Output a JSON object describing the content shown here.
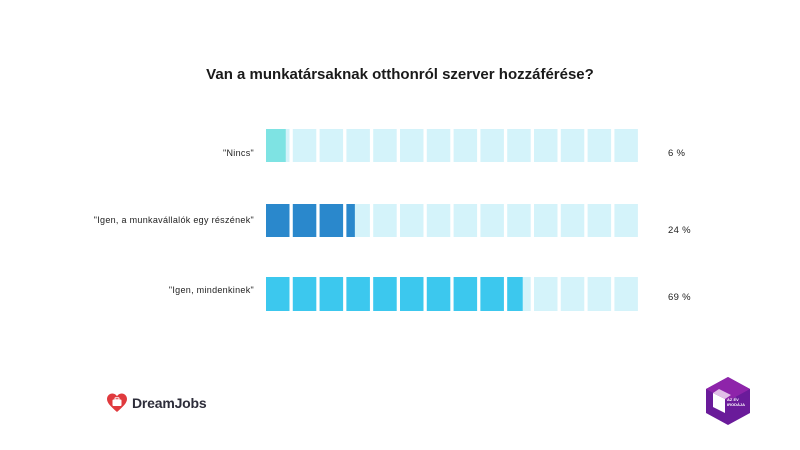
{
  "chart_data": {
    "type": "bar",
    "title": "Van a munkatársaknak otthonról szerver hozzáférése?",
    "categories": [
      "\"Nincs\"",
      "\"Igen, a munkavállalók egy részének\"",
      "\"Igen, mindenkinek\""
    ],
    "values": [
      6,
      24,
      69
    ],
    "value_labels": [
      "6 %",
      "24 %",
      "69 %"
    ],
    "unit": "%",
    "segments_per_bar": 14,
    "series_colors": [
      "#7ee3e3",
      "#2a88cc",
      "#3cc8ee"
    ],
    "empty_color": "#d4f3fa",
    "xlabel": "",
    "ylabel": "",
    "ylim": [
      0,
      100
    ]
  },
  "footer": {
    "brand_name": "DreamJobs",
    "badge_text": "AZ ÉV IRODÁJA"
  }
}
